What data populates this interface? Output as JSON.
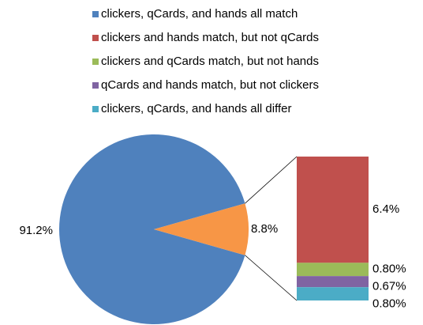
{
  "chart_data": {
    "type": "pie",
    "categories": [
      "clickers, qCards, and hands all match",
      "clickers and hands match, but not qCards",
      "clickers and qCards match, but not hands",
      "qCards and hands match, but not clickers",
      "clickers, qCards, and hands all differ"
    ],
    "values": [
      91.2,
      6.4,
      0.8,
      0.67,
      0.8
    ],
    "value_labels": [
      "91.2%",
      "6.4%",
      "0.80%",
      "0.67%",
      "0.80%"
    ],
    "colors": [
      "#4f81bd",
      "#c0504d",
      "#9bbb59",
      "#8064a2",
      "#4bacc6"
    ],
    "other": {
      "value": 8.8,
      "label": "8.8%",
      "color": "#f79646"
    }
  }
}
